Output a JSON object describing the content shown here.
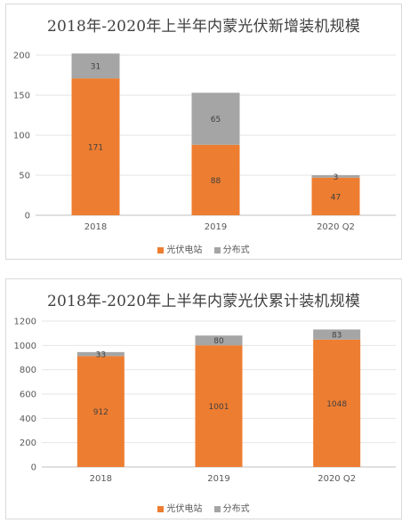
{
  "chart_data": [
    {
      "type": "bar",
      "stacked": true,
      "title": "2018年-2020年上半年内蒙光伏新增装机规模",
      "categories": [
        "2018",
        "2019",
        "2020 Q2"
      ],
      "series": [
        {
          "name": "光伏电站",
          "values": [
            171,
            88,
            47
          ],
          "color": "#ED7D31"
        },
        {
          "name": "分布式",
          "values": [
            31,
            65,
            3
          ],
          "color": "#A5A5A5"
        }
      ],
      "ylim": [
        0,
        200
      ],
      "yticks": [
        "0",
        "50",
        "100",
        "150",
        "200"
      ],
      "grid": true,
      "legend_position": "bottom"
    },
    {
      "type": "bar",
      "stacked": true,
      "title": "2018年-2020年上半年内蒙光伏累计装机规模",
      "categories": [
        "2018",
        "2019",
        "2020 Q2"
      ],
      "series": [
        {
          "name": "光伏电站",
          "values": [
            912,
            1001,
            1048
          ],
          "color": "#ED7D31"
        },
        {
          "name": "分布式",
          "values": [
            33,
            80,
            83
          ],
          "color": "#A5A5A5"
        }
      ],
      "ylim": [
        0,
        1200
      ],
      "yticks": [
        "0",
        "200",
        "400",
        "600",
        "800",
        "1000",
        "1200"
      ],
      "grid": true,
      "legend_position": "bottom"
    }
  ]
}
